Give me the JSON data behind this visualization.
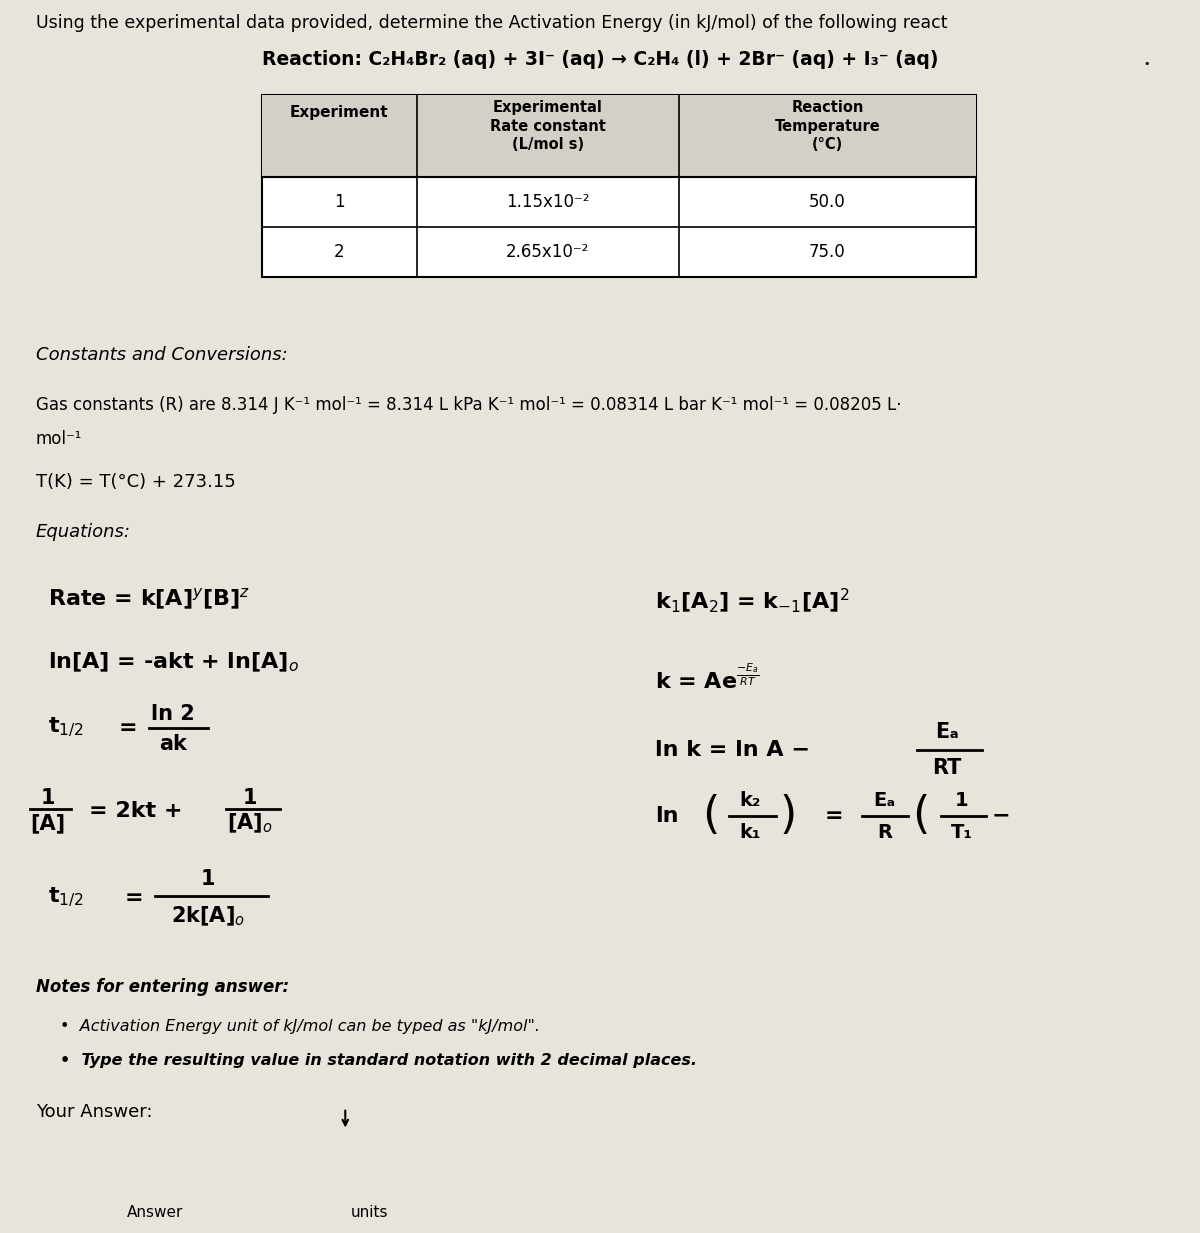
{
  "bg_color": "#e8e4dc",
  "title_text": "Using the experimental data provided, determine the Activation Energy (in kJ/mol) of the following react",
  "reaction_text": "Reaction: C₂H₄Br₂ (aq) + 3I⁻ (aq) → C₂H₄ (l) + 2Br⁻ (aq) + I₃⁻ (aq)",
  "table_col1_header": "Experiment",
  "table_col2_header": "Experimental\nRate constant\n(L/mol s)",
  "table_col3_header": "Reaction\nTemperature\n(°C)",
  "table_data": [
    [
      "1",
      "1.15x10⁻²",
      "50.0"
    ],
    [
      "2",
      "2.65x10⁻²",
      "75.0"
    ]
  ],
  "constants_label": "Constants and Conversions:",
  "gas_constant_line1": "Gas constants (R) are 8.314 J K⁻¹ mol⁻¹ = 8.314 L kPa K⁻¹ mol⁻¹ = 0.08314 L bar K⁻¹ mol⁻¹ = 0.08205 L·",
  "gas_constant_line2": "mol⁻¹",
  "temp_conversion": "T(K) = T(°C) + 273.15",
  "equations_label": "Equations:",
  "notes_label": "Notes for entering answer:",
  "note1": "Activation Energy unit of kJ/mol can be typed as \"kJ/mol\".",
  "note2": "Type the resulting value in standard notation with 2 decimal places.",
  "your_answer_label": "Your Answer:",
  "answer_label": "Answer",
  "units_label": "units"
}
